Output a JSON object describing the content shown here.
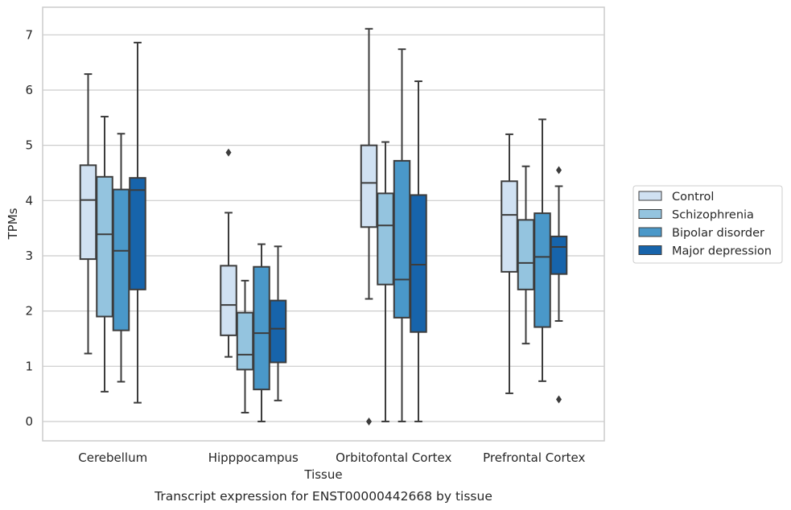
{
  "chart_data": {
    "type": "box",
    "title": "",
    "caption": "Transcript expression for ENST00000442668 by tissue",
    "xlabel": "Tissue",
    "ylabel": "TPMs",
    "ylim": [
      -0.35,
      7.5
    ],
    "yticks": [
      "0",
      "1",
      "2",
      "3",
      "4",
      "5",
      "6",
      "7"
    ],
    "grid": "horizontal",
    "legend_position": "right",
    "categories": [
      "Cerebellum",
      "Hipppocampus",
      "Orbitofontal Cortex",
      "Prefrontal Cortex"
    ],
    "series": [
      {
        "name": "Control",
        "color": "#d0e1f2",
        "boxes": [
          {
            "whisker_low": 1.23,
            "q1": 2.94,
            "median": 4.01,
            "q3": 4.64,
            "whisker_high": 6.29,
            "outliers": []
          },
          {
            "whisker_low": 1.17,
            "q1": 1.56,
            "median": 2.11,
            "q3": 2.82,
            "whisker_high": 3.78,
            "outliers": [
              4.87
            ]
          },
          {
            "whisker_low": 2.22,
            "q1": 3.52,
            "median": 4.32,
            "q3": 5.0,
            "whisker_high": 7.11,
            "outliers": [
              0.0
            ]
          },
          {
            "whisker_low": 0.51,
            "q1": 2.71,
            "median": 3.74,
            "q3": 4.35,
            "whisker_high": 5.2,
            "outliers": []
          }
        ]
      },
      {
        "name": "Schizophrenia",
        "color": "#94c4df",
        "boxes": [
          {
            "whisker_low": 0.54,
            "q1": 1.9,
            "median": 3.39,
            "q3": 4.43,
            "whisker_high": 5.52,
            "outliers": []
          },
          {
            "whisker_low": 0.16,
            "q1": 0.94,
            "median": 1.21,
            "q3": 1.97,
            "whisker_high": 2.55,
            "outliers": []
          },
          {
            "whisker_low": 0.0,
            "q1": 2.48,
            "median": 3.55,
            "q3": 4.13,
            "whisker_high": 5.06,
            "outliers": []
          },
          {
            "whisker_low": 1.41,
            "q1": 2.39,
            "median": 2.87,
            "q3": 3.65,
            "whisker_high": 4.62,
            "outliers": []
          }
        ]
      },
      {
        "name": "Bipolar disorder",
        "color": "#4a98c9",
        "boxes": [
          {
            "whisker_low": 0.72,
            "q1": 1.65,
            "median": 3.09,
            "q3": 4.2,
            "whisker_high": 5.21,
            "outliers": []
          },
          {
            "whisker_low": 0.0,
            "q1": 0.58,
            "median": 1.6,
            "q3": 2.8,
            "whisker_high": 3.21,
            "outliers": []
          },
          {
            "whisker_low": 0.0,
            "q1": 1.88,
            "median": 2.57,
            "q3": 4.72,
            "whisker_high": 6.74,
            "outliers": []
          },
          {
            "whisker_low": 0.73,
            "q1": 1.71,
            "median": 2.98,
            "q3": 3.77,
            "whisker_high": 5.47,
            "outliers": []
          }
        ]
      },
      {
        "name": "Major depression",
        "color": "#1764ab",
        "boxes": [
          {
            "whisker_low": 0.34,
            "q1": 2.39,
            "median": 4.19,
            "q3": 4.41,
            "whisker_high": 6.86,
            "outliers": []
          },
          {
            "whisker_low": 0.38,
            "q1": 1.07,
            "median": 1.68,
            "q3": 2.19,
            "whisker_high": 3.17,
            "outliers": []
          },
          {
            "whisker_low": 0.0,
            "q1": 1.62,
            "median": 2.84,
            "q3": 4.1,
            "whisker_high": 6.16,
            "outliers": []
          },
          {
            "whisker_low": 1.82,
            "q1": 2.67,
            "median": 3.16,
            "q3": 3.35,
            "whisker_high": 4.26,
            "outliers": [
              4.55,
              0.4
            ]
          }
        ]
      }
    ]
  },
  "colors": {
    "frame": "#cccccc",
    "grid": "#cccccc",
    "box_edge": "#3c3c3c"
  }
}
